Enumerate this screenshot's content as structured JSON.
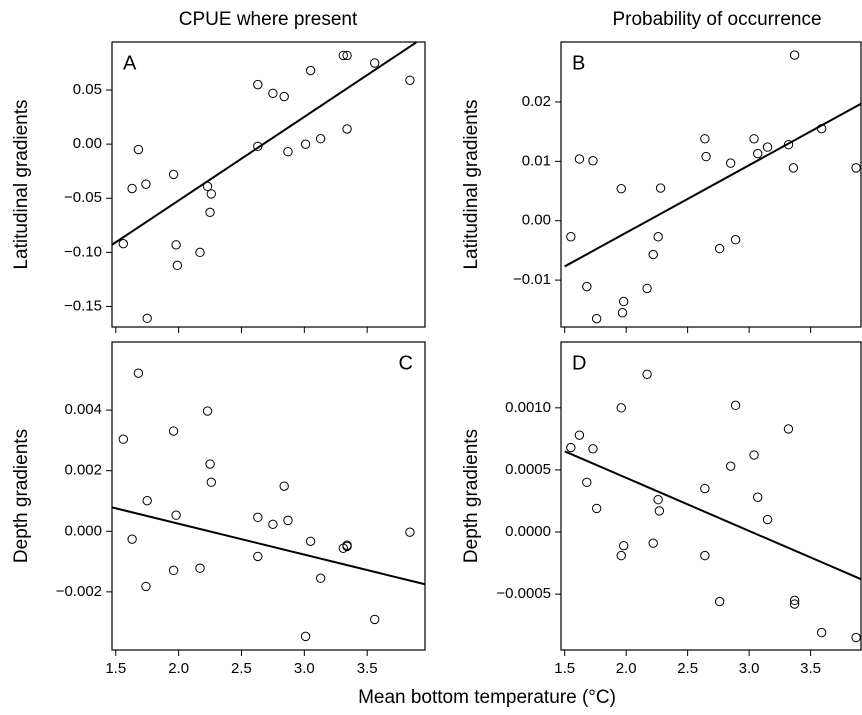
{
  "column_titles": [
    "CPUE where present",
    "Probability of occurrence"
  ],
  "x_label": "Mean bottom temperature (°C)",
  "chart_data": [
    {
      "type": "scatter",
      "panel_label": "A",
      "label_corner": "top-left",
      "y_label": "Latitudinal gradients",
      "show_x_tick_labels": false,
      "xlim": [
        1.47,
        3.96
      ],
      "ylim": [
        -0.169,
        0.0944
      ],
      "xticks": [
        1.5,
        {
          "value": 2,
          "label": "2.0"
        },
        2.5,
        {
          "value": 3,
          "label": "3.0"
        },
        3.5
      ],
      "yticks": [
        {
          "value": -0.15,
          "label": "−0.15"
        },
        {
          "value": -0.1,
          "label": "−0.10"
        },
        {
          "value": -0.05,
          "label": "−0.05"
        },
        {
          "value": 0,
          "label": "0.00"
        },
        0.05
      ],
      "x": [
        1.56,
        1.63,
        1.68,
        1.74,
        1.75,
        1.96,
        1.98,
        1.99,
        2.17,
        2.23,
        2.26,
        2.25,
        2.63,
        2.63,
        2.75,
        2.84,
        2.87,
        3.01,
        3.05,
        3.13,
        3.31,
        3.34,
        3.34,
        3.56,
        3.84
      ],
      "y": [
        -0.092,
        -0.041,
        -0.005,
        -0.037,
        -0.161,
        -0.028,
        -0.093,
        -0.112,
        -0.1,
        -0.039,
        -0.046,
        -0.063,
        0.055,
        -0.002,
        0.047,
        0.044,
        -0.007,
        0.0,
        0.068,
        0.005,
        0.082,
        0.082,
        0.014,
        0.075,
        0.059
      ],
      "trend_line": {
        "x": [
          1.47,
          3.89
        ],
        "y": [
          -0.093,
          0.094
        ]
      }
    },
    {
      "type": "scatter",
      "panel_label": "B",
      "label_corner": "top-left",
      "y_label": "Latitudinal gradients",
      "show_x_tick_labels": false,
      "xlim": [
        1.47,
        3.91
      ],
      "ylim": [
        -0.0179,
        0.0301
      ],
      "xticks": [
        1.5,
        {
          "value": 2,
          "label": "2.0"
        },
        2.5,
        {
          "value": 3,
          "label": "3.0"
        },
        3.5
      ],
      "yticks": [
        {
          "value": -0.01,
          "label": "−0.01"
        },
        {
          "value": 0,
          "label": "0.00"
        },
        0.01,
        0.02
      ],
      "x": [
        1.55,
        1.62,
        1.68,
        1.73,
        1.76,
        1.96,
        1.98,
        1.97,
        2.17,
        2.22,
        2.26,
        2.28,
        2.64,
        2.65,
        2.76,
        2.85,
        2.89,
        3.04,
        3.07,
        3.15,
        3.32,
        3.37,
        3.36,
        3.59,
        3.87
      ],
      "y": [
        -0.0027,
        0.0104,
        -0.0111,
        0.0101,
        -0.0165,
        0.0054,
        -0.0136,
        -0.0155,
        -0.0114,
        -0.0057,
        -0.0027,
        0.0055,
        0.0138,
        0.0108,
        -0.0047,
        0.0097,
        -0.0032,
        0.0138,
        0.0113,
        0.0124,
        0.0128,
        0.0279,
        0.0089,
        0.0155,
        0.0089
      ],
      "trend_line": {
        "x": [
          1.5,
          3.91
        ],
        "y": [
          -0.0077,
          0.0197
        ]
      }
    },
    {
      "type": "scatter",
      "panel_label": "C",
      "label_corner": "top-right",
      "y_label": "Depth gradients",
      "show_x_tick_labels": true,
      "xlim": [
        1.47,
        3.96
      ],
      "ylim": [
        -0.00392,
        0.00625
      ],
      "xticks": [
        1.5,
        {
          "value": 2,
          "label": "2.0"
        },
        2.5,
        {
          "value": 3,
          "label": "3.0"
        },
        3.5
      ],
      "yticks": [
        {
          "value": -0.002,
          "label": "−0.002"
        },
        {
          "value": 0,
          "label": "0.000"
        },
        0.002,
        0.004
      ],
      "x": [
        1.56,
        1.68,
        1.63,
        1.75,
        1.74,
        1.96,
        1.98,
        1.96,
        2.17,
        2.23,
        2.25,
        2.26,
        2.63,
        2.63,
        2.75,
        2.84,
        2.87,
        3.01,
        3.05,
        3.13,
        3.31,
        3.34,
        3.34,
        3.56,
        3.84
      ],
      "y": [
        0.00304,
        0.00522,
        -0.00026,
        0.00101,
        -0.00182,
        0.00331,
        0.00053,
        -0.00129,
        -0.00122,
        0.00397,
        0.00222,
        0.00162,
        0.00046,
        -0.00083,
        0.00023,
        0.00149,
        0.00036,
        -0.00347,
        -0.00033,
        -0.00155,
        -0.00056,
        -0.00046,
        -0.0005,
        -0.00291,
        -3e-05
      ],
      "trend_line": {
        "x": [
          1.47,
          3.96
        ],
        "y": [
          0.00079,
          -0.00175
        ]
      }
    },
    {
      "type": "scatter",
      "panel_label": "D",
      "label_corner": "top-left",
      "y_label": "Depth gradients",
      "show_x_tick_labels": true,
      "xlim": [
        1.47,
        3.91
      ],
      "ylim": [
        -0.00095,
        0.00153
      ],
      "xticks": [
        1.5,
        {
          "value": 2,
          "label": "2.0"
        },
        2.5,
        {
          "value": 3,
          "label": "3.0"
        },
        3.5
      ],
      "yticks": [
        {
          "value": -0.0005,
          "label": "−0.0005"
        },
        {
          "value": 0,
          "label": "0.0000"
        },
        {
          "value": 0.0005,
          "label": "0.0005"
        },
        {
          "value": 0.001,
          "label": "0.0010"
        }
      ],
      "x": [
        1.55,
        1.62,
        1.68,
        1.73,
        1.76,
        1.96,
        1.98,
        1.96,
        2.17,
        2.22,
        2.26,
        2.27,
        2.64,
        2.64,
        2.76,
        2.85,
        2.89,
        3.04,
        3.07,
        3.15,
        3.32,
        3.37,
        3.37,
        3.59,
        3.87
      ],
      "y": [
        0.00068,
        0.00078,
        0.0004,
        0.00067,
        0.00019,
        0.001,
        -0.00011,
        -0.00019,
        0.00127,
        -9e-05,
        0.00026,
        0.00017,
        0.00035,
        -0.00019,
        -0.00056,
        0.00053,
        0.00102,
        0.00062,
        0.00028,
        0.0001,
        0.00083,
        -0.00055,
        -0.00058,
        -0.00081,
        -0.00085
      ],
      "trend_line": {
        "x": [
          1.5,
          3.91
        ],
        "y": [
          0.00065,
          -0.00038
        ]
      }
    }
  ]
}
